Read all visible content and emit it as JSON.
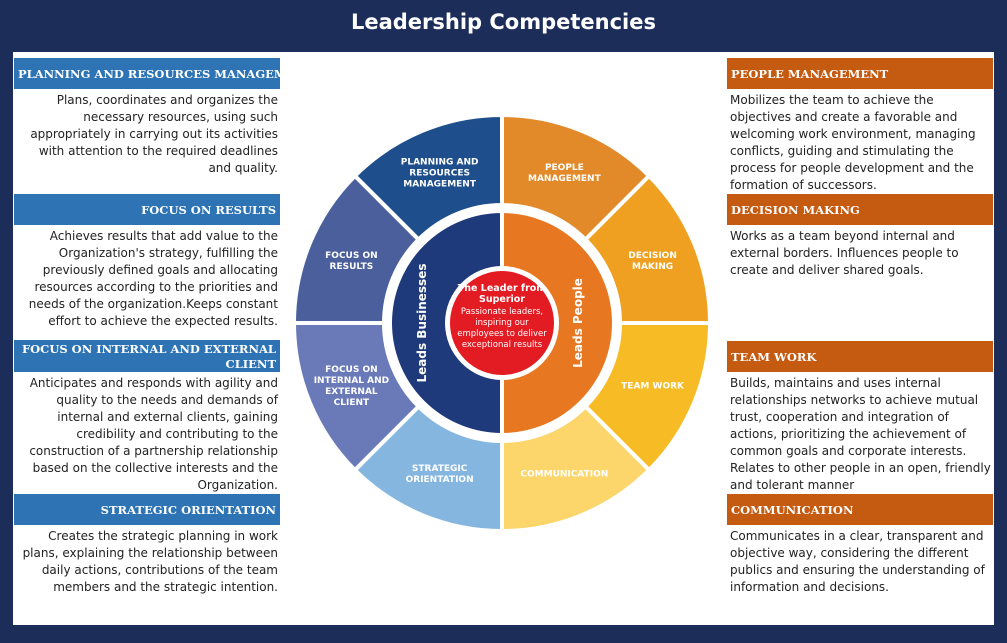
{
  "title": "Leadership Competencies",
  "colors": {
    "frame": "#1c2d5a",
    "left_header": "#2e74b5",
    "right_header": "#c55a11",
    "center": "#e31b23"
  },
  "left": [
    {
      "header": "PLANNING AND RESOURCES MANAGEMENT",
      "text": "Plans, coordinates and organizes the necessary resources, using such appropriately in carrying out its activities with attention to the required deadlines and quality."
    },
    {
      "header": "FOCUS ON RESULTS",
      "text": "Achieves results that add value to the Organization's strategy, fulfilling the previously defined goals and allocating resources according to the priorities and needs of the organization.Keeps constant effort to achieve the expected results."
    },
    {
      "header": "FOCUS ON INTERNAL AND EXTERNAL CLIENT",
      "text": "Anticipates and responds with agility and quality to the needs and demands of internal and external clients, gaining credibility and contributing to the construction of a partnership relationship based on the collective interests and the Organization."
    },
    {
      "header": "STRATEGIC ORIENTATION",
      "text": "Creates the strategic planning in work plans, explaining the relationship between daily actions, contributions of the team members and the strategic intention."
    }
  ],
  "right": [
    {
      "header": "PEOPLE MANAGEMENT",
      "text": "Mobilizes the team to achieve the objectives and create a favorable and welcoming work environment, managing conflicts, guiding and stimulating the process for people development and the formation of successors."
    },
    {
      "header": "DECISION MAKING",
      "text": "Works as a team beyond internal and external borders. Influences people to create and deliver shared goals."
    },
    {
      "header": "TEAM WORK",
      "text": "Builds, maintains and uses internal relationships networks to achieve mutual trust, cooperation and integration of actions, prioritizing the achievement of common goals and corporate interests.\nRelates to other people in an open, friendly and tolerant manner"
    },
    {
      "header": "COMMUNICATION",
      "text": "Communicates in a clear, transparent and objective way, considering the different publics and ensuring the understanding of information and decisions."
    }
  ],
  "wheel": {
    "segments": [
      {
        "label": "PLANNING AND RESOURCES MANAGEMENT",
        "color": "#1f4e8c"
      },
      {
        "label": "PEOPLE MANAGEMENT",
        "color": "#e2892a"
      },
      {
        "label": "DECISION MAKING",
        "color": "#f0a020"
      },
      {
        "label": "TEAM WORK",
        "color": "#f7bc25"
      },
      {
        "label": "COMMUNICATION",
        "color": "#fcd66a"
      },
      {
        "label": "STRATEGIC ORIENTATION",
        "color": "#85b6e0"
      },
      {
        "label": "FOCUS ON INTERNAL AND EXTERNAL CLIENT",
        "color": "#6a79b8"
      },
      {
        "label": "FOCUS ON RESULTS",
        "color": "#4a5f9c"
      }
    ],
    "inner_left": {
      "label": "Leads Businesses",
      "color": "#1e3a7a"
    },
    "inner_right": {
      "label": "Leads People",
      "color": "#e87722"
    },
    "center": {
      "title": "The Leader from Superior",
      "text": "Passionate leaders, inspiring our employees to deliver exceptional results"
    }
  }
}
